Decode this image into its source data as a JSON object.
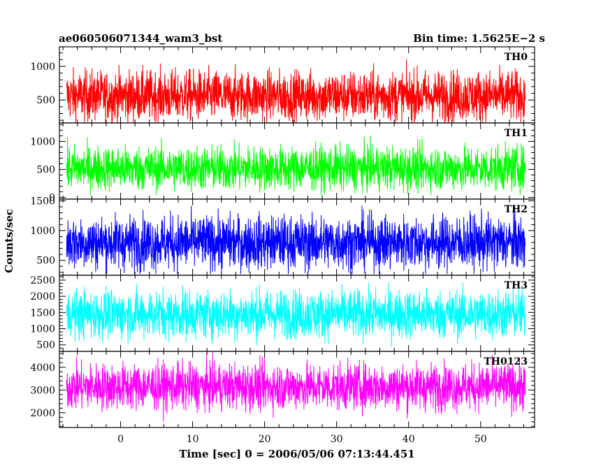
{
  "header": {
    "title": "ae060506071344_wam3_bst",
    "bin_time": "Bin time: 1.5625E−2 s"
  },
  "axes": {
    "ylabel": "Counts/sec",
    "xlabel": "Time [sec] 0 = 2006/05/06 07:13:44.451"
  },
  "chart_data": {
    "type": "line",
    "title": "ae060506071344_wam3_bst",
    "xlabel": "Time [sec] 0 = 2006/05/06 07:13:44.451",
    "ylabel": "Counts/sec",
    "xlim": [
      -8.5,
      57.5
    ],
    "data_xrange": [
      -7.5,
      56.2
    ],
    "xticks": [
      0,
      10,
      20,
      30,
      40,
      50
    ],
    "bin_time_sec": 0.015625,
    "panels": [
      {
        "name": "TH0",
        "color": "#ff0000",
        "ylim": [
          160,
          1290
        ],
        "yticks": [
          500,
          1000
        ],
        "mean": 560,
        "sigma": 190,
        "low_extreme": 160,
        "high_extreme": 1290
      },
      {
        "name": "TH1",
        "color": "#00ff00",
        "ylim": [
          -30,
          1330
        ],
        "yticks": [
          0,
          500,
          1000
        ],
        "mean": 520,
        "sigma": 200,
        "low_extreme": 40,
        "high_extreme": 1300
      },
      {
        "name": "TH2",
        "color": "#0000ff",
        "ylim": [
          250,
          1530
        ],
        "yticks": [
          500,
          1000,
          1500
        ],
        "mean": 800,
        "sigma": 230,
        "low_extreme": 270,
        "high_extreme": 1520
      },
      {
        "name": "TH3",
        "color": "#00ffff",
        "ylim": [
          300,
          2650
        ],
        "yticks": [
          500,
          1000,
          1500,
          2000,
          2500
        ],
        "mean": 1450,
        "sigma": 380,
        "low_extreme": 420,
        "high_extreme": 2430
      },
      {
        "name": "TH0123",
        "color": "#ff00ff",
        "ylim": [
          1350,
          4700
        ],
        "yticks": [
          2000,
          3000,
          4000
        ],
        "mean": 3150,
        "sigma": 520,
        "low_extreme": 1500,
        "high_extreme": 4700
      }
    ]
  }
}
